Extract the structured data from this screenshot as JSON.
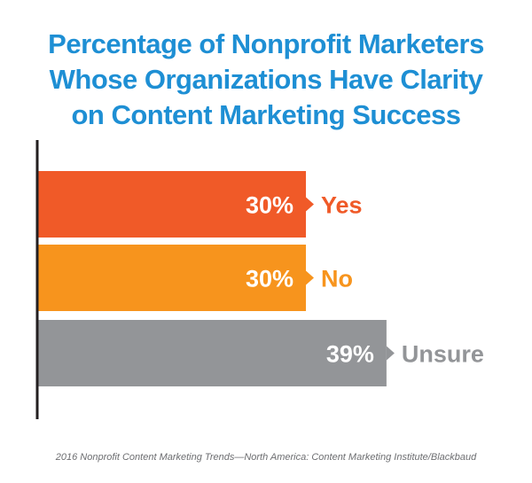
{
  "title": {
    "line1": "Percentage of Nonprofit Marketers",
    "line2": "Whose Organizations Have Clarity",
    "line3": "on Content Marketing Success"
  },
  "source": "2016 Nonprofit Content Marketing Trends—North America: Content Marketing Institute/Blackbaud",
  "chart_data": {
    "type": "bar",
    "orientation": "horizontal",
    "title": "Percentage of Nonprofit Marketers Whose Organizations Have Clarity on Content Marketing Success",
    "categories": [
      "Yes",
      "No",
      "Unsure"
    ],
    "values": [
      30,
      30,
      39
    ],
    "value_labels": [
      "30%",
      "30%",
      "39%"
    ],
    "colors": [
      "#f05a28",
      "#f7941d",
      "#939598"
    ],
    "axis_color": "#231f20",
    "xlim": [
      0,
      50
    ],
    "grid": false,
    "legend": "none"
  }
}
